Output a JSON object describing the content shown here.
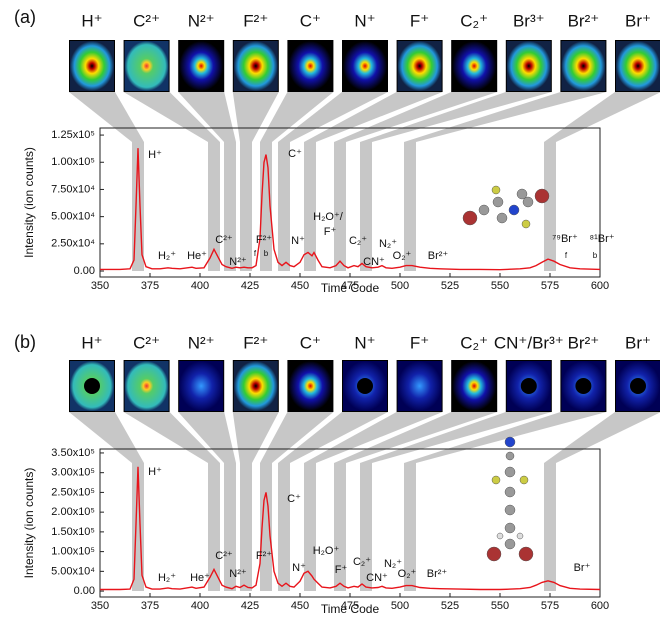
{
  "chart_data": [
    {
      "type": "line",
      "panel_label": "(a)",
      "ion_images": [
        "H⁺",
        "C²⁺",
        "N²⁺",
        "F²⁺",
        "C⁺",
        "N⁺",
        "F⁺",
        "C₂⁺",
        "Br³⁺",
        "Br²⁺",
        "Br⁺"
      ],
      "x_label": "Time Code",
      "y_label": "Intensity (ion counts)",
      "xlim": [
        350,
        600
      ],
      "xticks": [
        350,
        375,
        400,
        425,
        450,
        475,
        500,
        525,
        550,
        575,
        600
      ],
      "ylim": [
        -5500,
        131500
      ],
      "yticks": [
        {
          "value": 0,
          "label": "0.00"
        },
        {
          "value": 25000,
          "label": "2.50x10⁴"
        },
        {
          "value": 50000,
          "label": "5.00x10⁴"
        },
        {
          "value": 75000,
          "label": "7.50x10⁴"
        },
        {
          "value": 100000,
          "label": "1.00x10⁵"
        },
        {
          "value": 125000,
          "label": "1.25x10⁵"
        }
      ],
      "color": "#e8141b",
      "x": [
        350,
        360,
        365,
        367,
        368,
        369,
        370,
        371,
        373,
        376,
        380,
        384,
        386,
        390,
        396,
        398,
        402,
        405,
        407,
        409,
        411,
        413,
        416,
        418,
        420,
        422,
        424,
        426,
        428,
        430,
        431,
        432,
        433,
        434,
        435,
        437,
        439,
        441,
        443,
        445,
        447,
        450,
        452,
        454,
        456,
        457,
        459,
        461,
        465,
        468,
        470,
        472,
        474,
        477,
        479,
        481,
        483,
        486,
        489,
        491,
        493,
        496,
        500,
        503,
        506,
        510,
        515,
        520,
        530,
        540,
        550,
        560,
        565,
        568,
        571,
        574,
        577,
        580,
        585,
        590,
        600
      ],
      "values": [
        1500,
        1500,
        2000,
        10000,
        60000,
        113000,
        60000,
        15000,
        4000,
        2000,
        2000,
        3000,
        2500,
        2000,
        3500,
        2500,
        3000,
        12000,
        20000,
        13000,
        6000,
        4000,
        2500,
        3500,
        3000,
        3500,
        3000,
        3000,
        5000,
        30000,
        70000,
        100000,
        107000,
        95000,
        60000,
        20000,
        8000,
        5000,
        8000,
        5000,
        4000,
        8000,
        15000,
        17000,
        14000,
        17000,
        10000,
        4000,
        3000,
        5000,
        9000,
        5000,
        3000,
        5000,
        4000,
        7000,
        4000,
        3000,
        3500,
        5000,
        3000,
        2500,
        3500,
        5000,
        5000,
        3500,
        2500,
        2000,
        1500,
        1500,
        1200,
        2000,
        3000,
        5000,
        8000,
        11000,
        9000,
        6000,
        3000,
        2000,
        1500
      ],
      "annotations": [
        "H⁺",
        "H₂⁺",
        "He⁺",
        "C²⁺",
        "N²⁺",
        "F²⁺",
        "f",
        "b",
        "C⁺",
        "N⁺",
        "H₂O⁺/",
        "F⁺",
        "C₂⁺",
        "CN⁺",
        "N₂⁺",
        "O₂⁺",
        "Br²⁺",
        "⁷⁹Br⁺",
        "⁸¹Br⁺",
        "f",
        "b"
      ]
    },
    {
      "type": "line",
      "panel_label": "(b)",
      "ion_images": [
        "H⁺",
        "C²⁺",
        "N²⁺",
        "F²⁺",
        "C⁺",
        "N⁺",
        "F⁺",
        "C₂⁺",
        "CN⁺/Br³⁺",
        "Br²⁺",
        "Br⁺"
      ],
      "x_label": "Time Code",
      "y_label": "Intensity (ion counts)",
      "xlim": [
        350,
        600
      ],
      "xticks": [
        350,
        375,
        400,
        425,
        450,
        475,
        500,
        525,
        550,
        575,
        600
      ],
      "ylim": [
        -15000,
        360000
      ],
      "yticks": [
        {
          "value": 0,
          "label": "0.00"
        },
        {
          "value": 50000,
          "label": "5.00x10⁴"
        },
        {
          "value": 100000,
          "label": "1.00x10⁵"
        },
        {
          "value": 150000,
          "label": "1.50x10⁵"
        },
        {
          "value": 200000,
          "label": "2.00x10⁵"
        },
        {
          "value": 250000,
          "label": "2.50x10⁵"
        },
        {
          "value": 300000,
          "label": "3.00x10⁵"
        },
        {
          "value": 350000,
          "label": "3.50x10⁵"
        }
      ],
      "color": "#e8141b",
      "x": [
        350,
        360,
        365,
        367,
        368,
        369,
        370,
        371,
        373,
        376,
        380,
        384,
        386,
        390,
        396,
        398,
        402,
        405,
        407,
        409,
        411,
        413,
        416,
        418,
        420,
        422,
        424,
        426,
        428,
        430,
        431,
        432,
        433,
        434,
        435,
        437,
        439,
        441,
        443,
        445,
        447,
        450,
        452,
        454,
        456,
        457,
        459,
        461,
        465,
        468,
        470,
        472,
        474,
        477,
        479,
        481,
        483,
        486,
        489,
        491,
        493,
        496,
        500,
        503,
        506,
        510,
        515,
        520,
        530,
        540,
        550,
        560,
        565,
        568,
        571,
        574,
        577,
        580,
        585,
        590,
        600
      ],
      "values": [
        4000,
        4000,
        5000,
        30000,
        170000,
        315000,
        170000,
        40000,
        10000,
        5000,
        5000,
        8000,
        6000,
        5000,
        10000,
        7000,
        10000,
        35000,
        55000,
        35000,
        15000,
        10000,
        6000,
        12000,
        9000,
        15000,
        9000,
        8000,
        15000,
        70000,
        160000,
        230000,
        250000,
        215000,
        140000,
        50000,
        20000,
        12000,
        20000,
        12000,
        10000,
        25000,
        45000,
        50000,
        38000,
        30000,
        20000,
        10000,
        8000,
        12000,
        20000,
        12000,
        8000,
        12000,
        10000,
        18000,
        10000,
        8000,
        9000,
        12000,
        8000,
        7000,
        10000,
        14000,
        14000,
        9000,
        7000,
        6000,
        5000,
        4000,
        4000,
        6000,
        9000,
        15000,
        22000,
        26000,
        22000,
        14000,
        7000,
        5000,
        4000
      ],
      "annotations": [
        "H⁺",
        "H₂⁺",
        "He⁺",
        "C²⁺",
        "N²⁺",
        "F²⁺",
        "C⁺",
        "N⁺",
        "H₂O⁺",
        "F⁺",
        "C₂⁺",
        "CN⁺",
        "N₂⁺",
        "O₂⁺",
        "Br²⁺",
        "Br⁺"
      ]
    }
  ]
}
